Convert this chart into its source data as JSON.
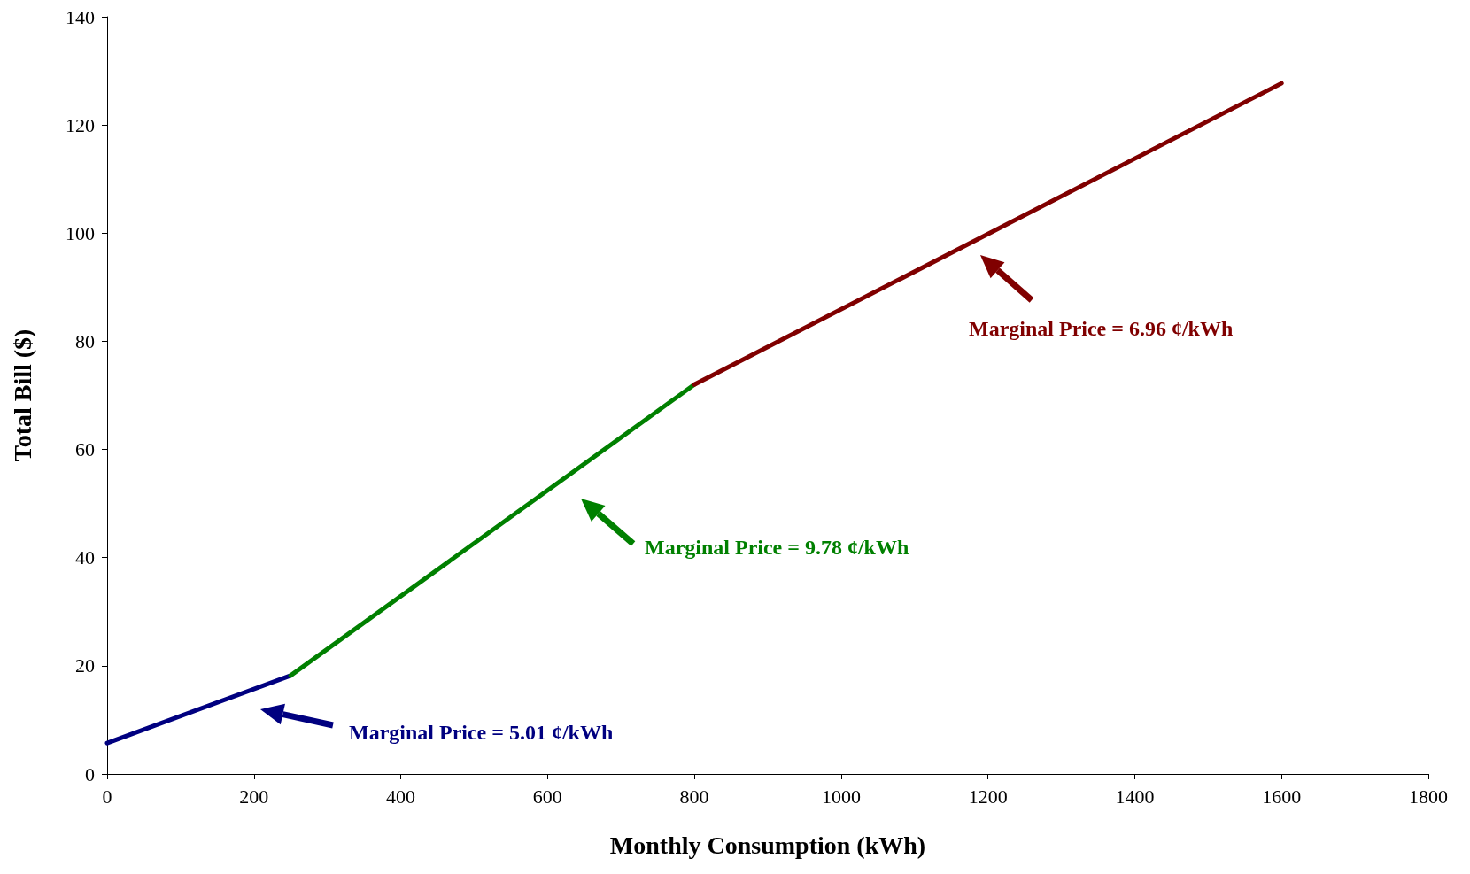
{
  "chart_data": {
    "type": "line",
    "xlabel": "Monthly Consumption (kWh)",
    "ylabel": "Total Bill ($)",
    "series": [
      {
        "color": "#000080",
        "x": [
          0,
          250
        ],
        "values": [
          5.7,
          18.2
        ]
      },
      {
        "color": "#008000",
        "x": [
          250,
          800
        ],
        "values": [
          18.2,
          72
        ]
      },
      {
        "color": "#800000",
        "x": [
          800,
          1600
        ],
        "values": [
          72,
          127.7
        ]
      }
    ],
    "xlim": [
      0,
      1800
    ],
    "xticks": [
      0,
      200,
      400,
      600,
      800,
      1000,
      1200,
      1400,
      1600,
      1800
    ],
    "ylim": [
      0,
      140
    ],
    "yticks": [
      0,
      20,
      40,
      60,
      80,
      100,
      120,
      140
    ],
    "grid": false,
    "marker": "none",
    "line_style": "solid",
    "annotations": [
      "Marginal Price = 5.01 ¢/kWh",
      "Marginal Price = 9.78 ¢/kWh",
      "Marginal Price = 6.96 ¢/kWh"
    ]
  }
}
